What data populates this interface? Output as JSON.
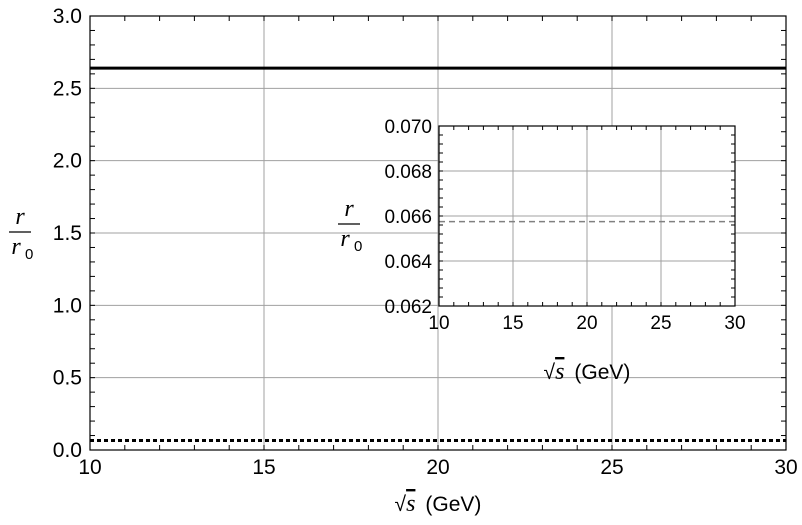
{
  "chart_data": [
    {
      "type": "line",
      "x": [
        10,
        30
      ],
      "xlim": [
        10,
        30
      ],
      "ylim": [
        0,
        3.0
      ],
      "xticks": [
        "10",
        "15",
        "20",
        "25",
        "30"
      ],
      "yticks": [
        "0.0",
        "0.5",
        "1.0",
        "1.5",
        "2.0",
        "2.5",
        "3.0"
      ],
      "xlabel": {
        "root": "√",
        "var": "s",
        "unit": "(GeV)"
      },
      "ylabel": {
        "num": "r",
        "den": "r",
        "den_sub": "0"
      },
      "grid": true,
      "series": [
        {
          "style": "solid",
          "color": "#000000",
          "values": [
            2.64,
            2.64
          ]
        },
        {
          "style": "dotted",
          "color": "#000000",
          "values": [
            0.0657,
            0.0657
          ]
        }
      ]
    },
    {
      "type": "line",
      "x": [
        10,
        30
      ],
      "xlim": [
        10,
        30
      ],
      "ylim": [
        0.062,
        0.07
      ],
      "xticks": [
        "10",
        "15",
        "20",
        "25",
        "30"
      ],
      "yticks": [
        "0.062",
        "0.064",
        "0.066",
        "0.068",
        "0.070"
      ],
      "xlabel": {
        "root": "√",
        "var": "s",
        "unit": "(GeV)"
      },
      "ylabel": {
        "num": "r",
        "den": "r",
        "den_sub": "0"
      },
      "grid": true,
      "series": [
        {
          "style": "dashed",
          "color": "#808080",
          "values": [
            0.06575,
            0.06575
          ]
        }
      ]
    }
  ]
}
